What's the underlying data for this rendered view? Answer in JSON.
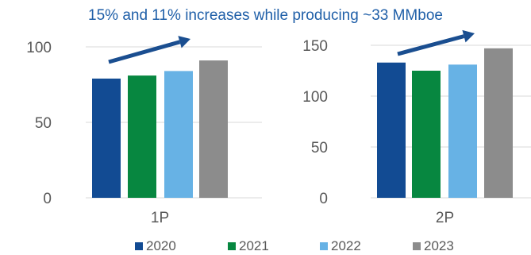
{
  "title": "15% and 11% increases while producing ~33 MMboe",
  "colors": {
    "2020": "#124B93",
    "2021": "#078740",
    "2022": "#67B2E5",
    "2023": "#8C8C8C",
    "arrow": "#1A4E90",
    "axis_text": "#595959",
    "grid": "#D9D9D9"
  },
  "chart_data": [
    {
      "type": "bar",
      "categories": [
        "1P"
      ],
      "series": [
        {
          "name": "2020",
          "values": [
            79
          ]
        },
        {
          "name": "2021",
          "values": [
            81
          ]
        },
        {
          "name": "2022",
          "values": [
            84
          ]
        },
        {
          "name": "2023",
          "values": [
            91
          ]
        }
      ],
      "ylim": [
        0,
        100
      ],
      "yticks": [
        "0",
        "50",
        "100"
      ],
      "grid": true
    },
    {
      "type": "bar",
      "categories": [
        "2P"
      ],
      "series": [
        {
          "name": "2020",
          "values": [
            133
          ]
        },
        {
          "name": "2021",
          "values": [
            125
          ]
        },
        {
          "name": "2022",
          "values": [
            131
          ]
        },
        {
          "name": "2023",
          "values": [
            147
          ]
        }
      ],
      "ylim": [
        0,
        150
      ],
      "yticks": [
        "0",
        "50",
        "100",
        "150"
      ],
      "grid": true
    }
  ],
  "legend": [
    {
      "label": "2020",
      "color": "#124B93"
    },
    {
      "label": "2021",
      "color": "#078740"
    },
    {
      "label": "2022",
      "color": "#67B2E5"
    },
    {
      "label": "2023",
      "color": "#8C8C8C"
    }
  ]
}
